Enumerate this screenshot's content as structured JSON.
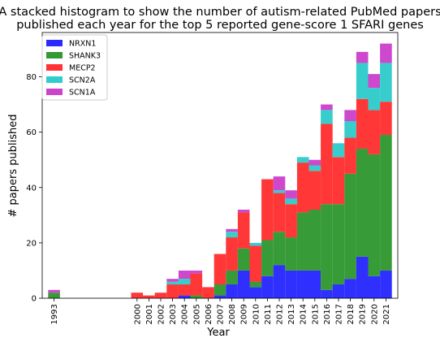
{
  "chart_data": {
    "type": "bar",
    "stacked": true,
    "title_line1": "A stacked histogram to show the number of autism-related PubMed papers",
    "title_line2": "published each year for the top 5 reported gene-score 1 SFARI genes",
    "xlabel": "Year",
    "ylabel": "# papers published",
    "xlim": [
      1992,
      2022
    ],
    "ylim": [
      0,
      96
    ],
    "x_ticks": [
      1993,
      2000,
      2001,
      2002,
      2003,
      2004,
      2005,
      2006,
      2007,
      2008,
      2009,
      2010,
      2011,
      2012,
      2013,
      2014,
      2015,
      2016,
      2017,
      2018,
      2019,
      2020,
      2021
    ],
    "y_ticks": [
      0,
      20,
      40,
      60,
      80
    ],
    "grid": false,
    "legend_position": "top-left",
    "series": [
      {
        "name": "NRXN1",
        "color": "#2b2bff",
        "values": {
          "1993": 0,
          "2000": 0,
          "2001": 0,
          "2002": 0,
          "2003": 0,
          "2004": 1,
          "2005": 0,
          "2006": 0,
          "2007": 1,
          "2008": 5,
          "2009": 10,
          "2010": 4,
          "2011": 8,
          "2012": 12,
          "2013": 10,
          "2014": 10,
          "2015": 10,
          "2016": 3,
          "2017": 5,
          "2018": 7,
          "2019": 15,
          "2020": 8,
          "2021": 10
        }
      },
      {
        "name": "SHANK3",
        "color": "#339933",
        "values": {
          "1993": 2,
          "2000": 0,
          "2001": 0,
          "2002": 0,
          "2003": 0,
          "2004": 0,
          "2005": 1,
          "2006": 0,
          "2007": 4,
          "2008": 5,
          "2009": 8,
          "2010": 2,
          "2011": 13,
          "2012": 12,
          "2013": 12,
          "2014": 21,
          "2015": 22,
          "2016": 31,
          "2017": 29,
          "2018": 38,
          "2019": 39,
          "2020": 44,
          "2021": 49
        }
      },
      {
        "name": "MECP2",
        "color": "#ff3333",
        "values": {
          "1993": 0,
          "2000": 2,
          "2001": 1,
          "2002": 2,
          "2003": 5,
          "2004": 4,
          "2005": 8,
          "2006": 4,
          "2007": 11,
          "2008": 12,
          "2009": 13,
          "2010": 13,
          "2011": 22,
          "2012": 14,
          "2013": 12,
          "2014": 18,
          "2015": 14,
          "2016": 29,
          "2017": 17,
          "2018": 13,
          "2019": 18,
          "2020": 16,
          "2021": 12
        }
      },
      {
        "name": "SCN2A",
        "color": "#33cccc",
        "values": {
          "1993": 0,
          "2000": 0,
          "2001": 0,
          "2002": 0,
          "2003": 1,
          "2004": 2,
          "2005": 0,
          "2006": 0,
          "2007": 0,
          "2008": 2,
          "2009": 0,
          "2010": 1,
          "2011": 0,
          "2012": 1,
          "2013": 2,
          "2014": 2,
          "2015": 2,
          "2016": 5,
          "2017": 5,
          "2018": 6,
          "2019": 13,
          "2020": 8,
          "2021": 14
        }
      },
      {
        "name": "SCN1A",
        "color": "#cc44cc",
        "values": {
          "1993": 1,
          "2000": 0,
          "2001": 0,
          "2002": 0,
          "2003": 1,
          "2004": 3,
          "2005": 1,
          "2006": 0,
          "2007": 0,
          "2008": 1,
          "2009": 1,
          "2010": 0,
          "2011": 0,
          "2012": 5,
          "2013": 3,
          "2014": 0,
          "2015": 2,
          "2016": 2,
          "2017": 0,
          "2018": 4,
          "2019": 4,
          "2020": 5,
          "2021": 7
        }
      }
    ]
  }
}
